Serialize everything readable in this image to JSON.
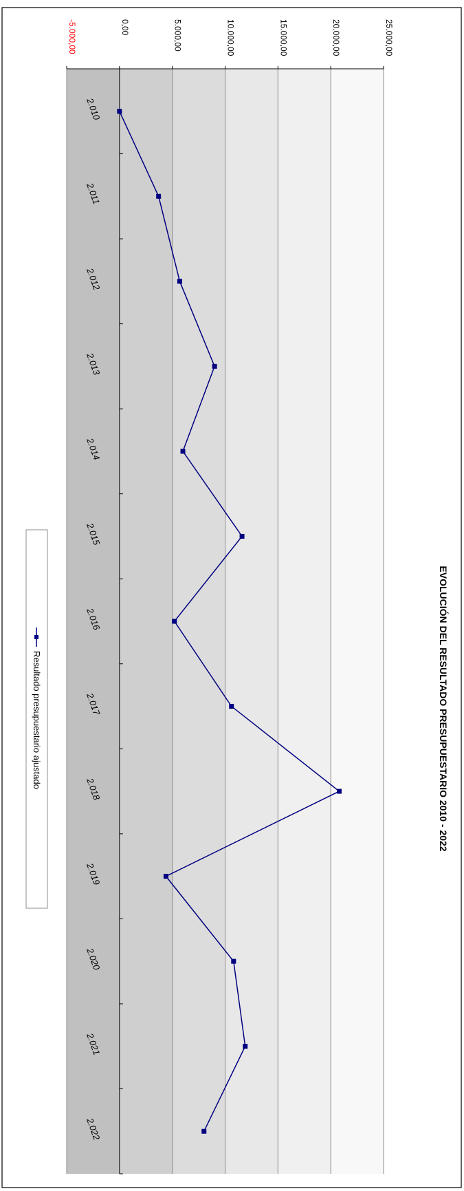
{
  "chart_data": {
    "type": "line",
    "title": "EVOLUCIÓN DEL RESULTADO PRESUPUESTARIO 2010 - 2022",
    "xlabel": "",
    "ylabel": "",
    "orientation": "rotated-90-clockwise",
    "categories": [
      "2.010",
      "2.011",
      "2.012",
      "2.013",
      "2.014",
      "2.015",
      "2.016",
      "2.017",
      "2.018",
      "2.019",
      "2.020",
      "2.021",
      "2.022"
    ],
    "series": [
      {
        "name": "Resultado presupuestario ajustado",
        "color": "#000080",
        "marker": "square",
        "values": [
          0,
          3700,
          5700,
          9000,
          6000,
          11600,
          5200,
          10600,
          20800,
          4400,
          10800,
          11900,
          8000
        ]
      }
    ],
    "ylim": [
      -5000,
      25000
    ],
    "yticks": [
      -5000,
      0,
      5000,
      10000,
      15000,
      20000,
      25000
    ],
    "ytick_labels": [
      "-5.000,00",
      "0,00",
      "5.000,00",
      "10.000,00",
      "15.000,00",
      "20.000,00",
      "25.000,00"
    ],
    "negative_tick_color": "#ff0000",
    "band_colors": [
      "#c0c0c0",
      "#cfcfcf",
      "#dcdcdc",
      "#e8e8e8",
      "#f0f0f0",
      "#f8f8f8"
    ],
    "grid": true,
    "legend_position": "bottom"
  }
}
